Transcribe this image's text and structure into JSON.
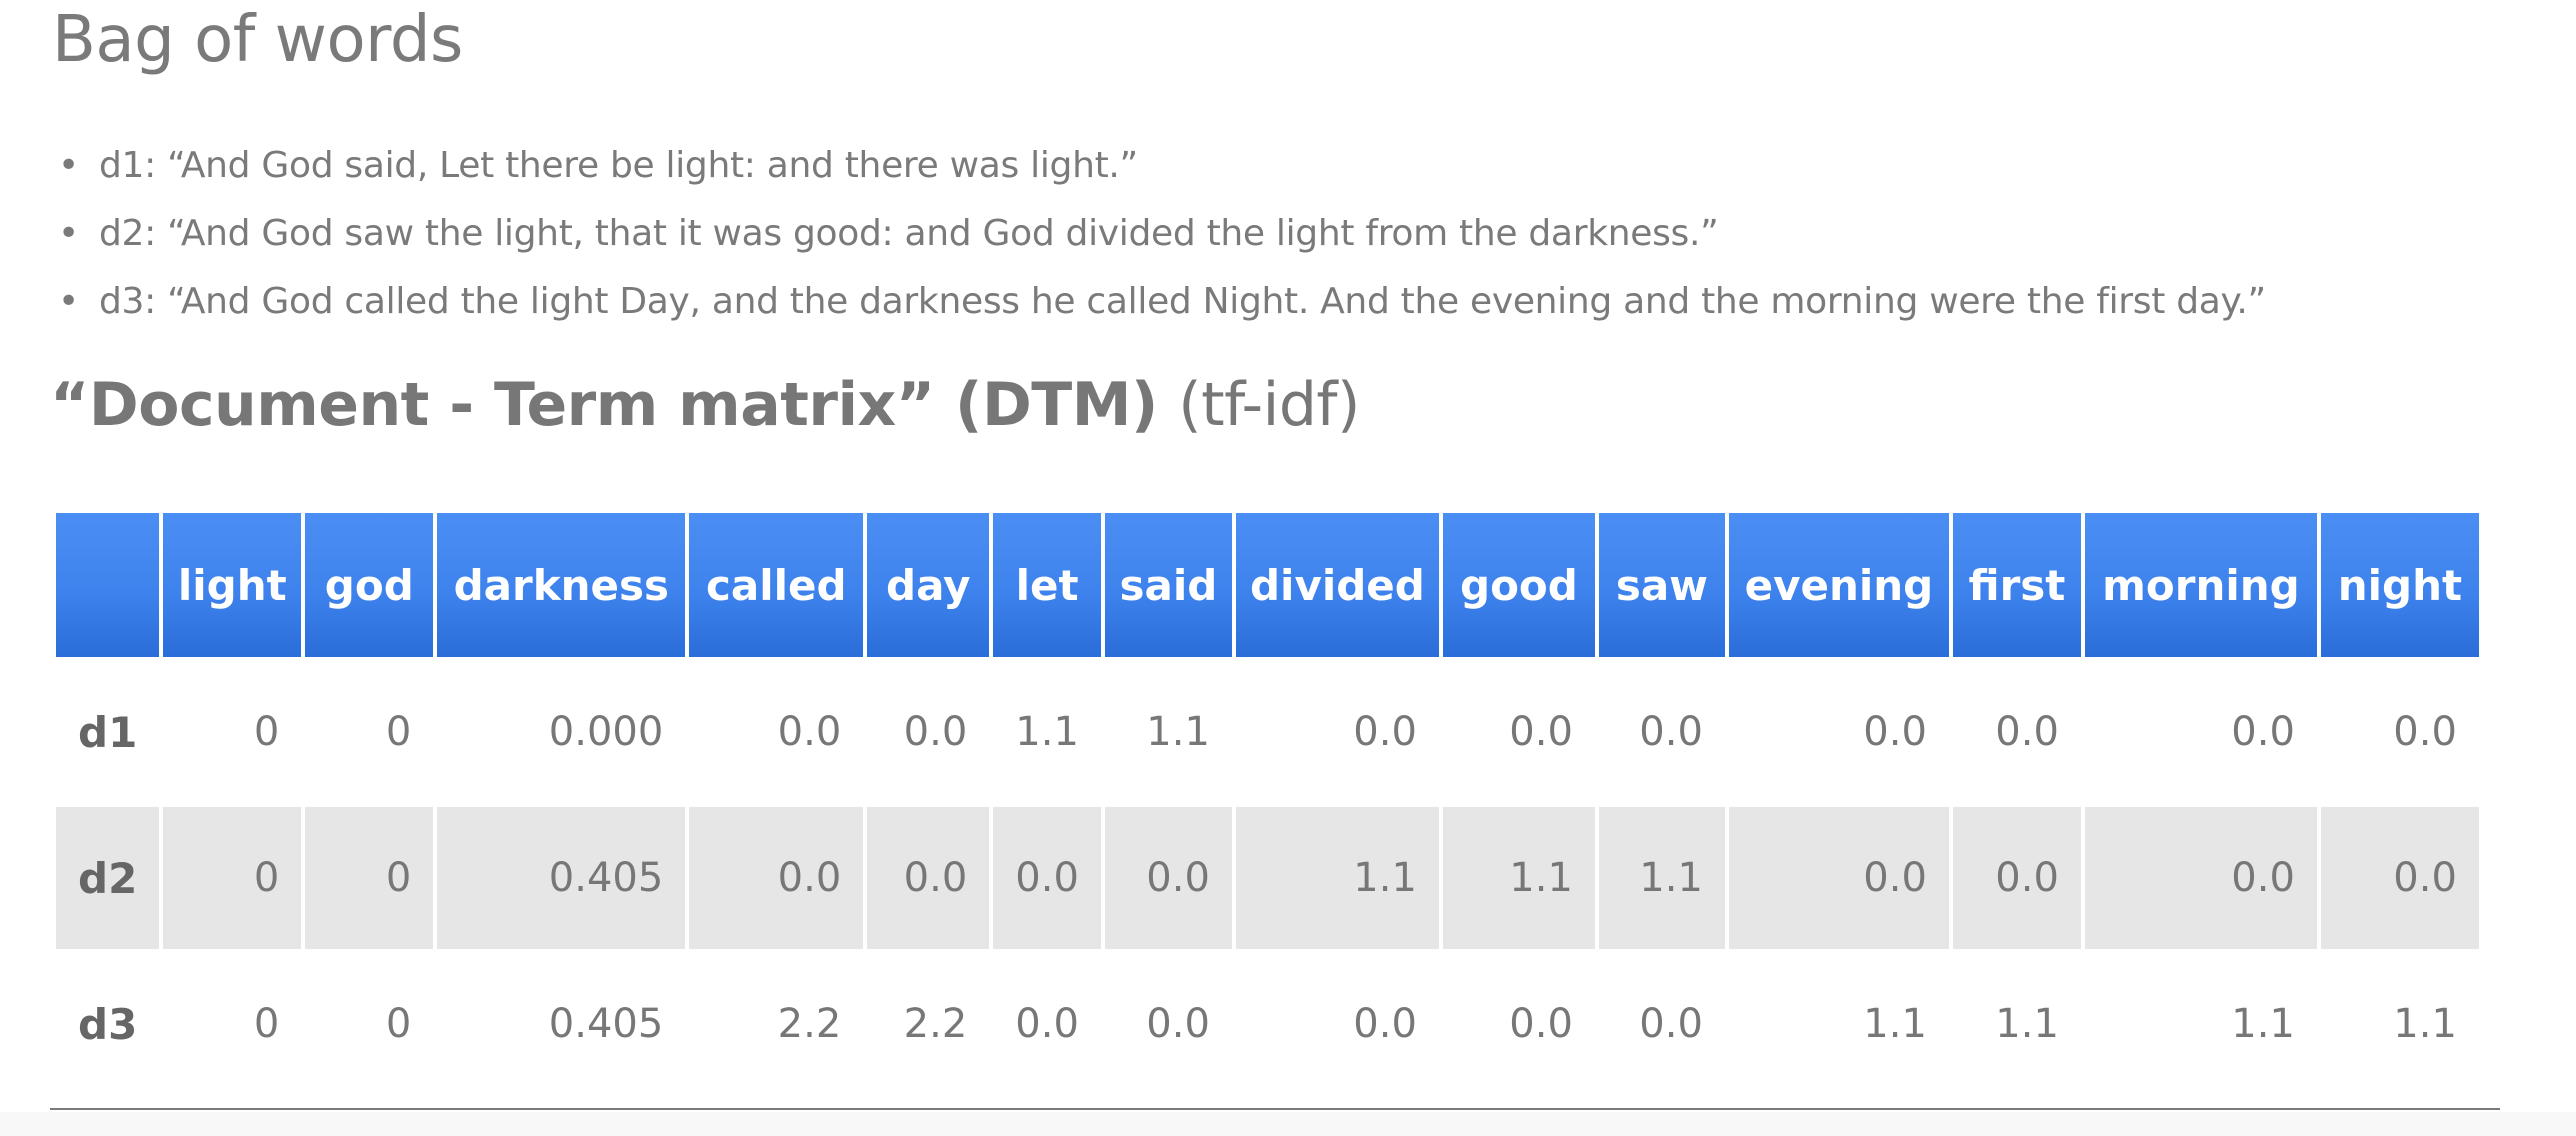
{
  "title": "Bag of words",
  "documents": [
    {
      "bullet": "•",
      "text": "d1: “And God said, Let there be light: and there was light.”"
    },
    {
      "bullet": "•",
      "text": "d2: “And God saw the light, that it was good: and God divided the light from the darkness.”"
    },
    {
      "bullet": "•",
      "text": "d3: “And God called the light Day, and the darkness he called Night. And the evening and the morning were the first day.”"
    }
  ],
  "matrix": {
    "title_bold": "“Document - Term matrix” (DTM)",
    "title_suffix": "(tf-idf)",
    "columns": [
      "light",
      "god",
      "darkness",
      "called",
      "day",
      "let",
      "said",
      "divided",
      "good",
      "saw",
      "evening",
      "first",
      "morning",
      "night"
    ],
    "rows": [
      {
        "label": "d1",
        "values": [
          "0",
          "0",
          "0.000",
          "0.0",
          "0.0",
          "1.1",
          "1.1",
          "0.0",
          "0.0",
          "0.0",
          "0.0",
          "0.0",
          "0.0",
          "0.0"
        ]
      },
      {
        "label": "d2",
        "values": [
          "0",
          "0",
          "0.405",
          "0.0",
          "0.0",
          "0.0",
          "0.0",
          "1.1",
          "1.1",
          "1.1",
          "0.0",
          "0.0",
          "0.0",
          "0.0"
        ]
      },
      {
        "label": "d3",
        "values": [
          "0",
          "0",
          "0.405",
          "2.2",
          "2.2",
          "0.0",
          "0.0",
          "0.0",
          "0.0",
          "0.0",
          "1.1",
          "1.1",
          "1.1",
          "1.1"
        ]
      }
    ]
  },
  "colors": {
    "header_blue": "#3e82ed",
    "stripe_gray": "#e6e6e6",
    "text_gray": "#777777"
  }
}
